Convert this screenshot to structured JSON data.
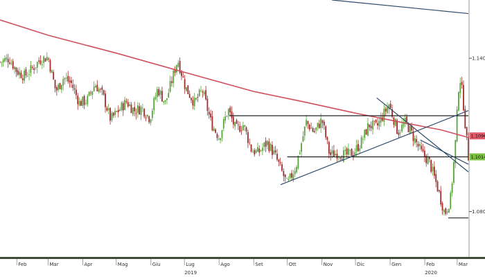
{
  "chart_data": {
    "type": "candlestick",
    "title": "",
    "xlabel": "",
    "ylabel": "",
    "x_ticks": [
      "Feb",
      "Mar",
      "Apr",
      "Mag",
      "Giu",
      "Lug",
      "Ago",
      "Set",
      "Ott",
      "Nov",
      "Dic",
      "Gen",
      "Feb",
      "Mar"
    ],
    "x_tick_dates": [
      "2019-02-01",
      "2019-03-01",
      "2019-04-01",
      "2019-05-01",
      "2019-06-01",
      "2019-07-01",
      "2019-08-01",
      "2019-09-01",
      "2019-10-01",
      "2019-11-01",
      "2019-12-01",
      "2020-01-01",
      "2020-02-01",
      "2020-03-01"
    ],
    "x_range": [
      "2019-01-17",
      "2020-03-11"
    ],
    "years": [
      {
        "label": "2019",
        "date": "2019-07-01"
      },
      {
        "label": "2020",
        "date": "2020-02-01"
      }
    ],
    "y_ticks": [
      1.08,
      1.14
    ],
    "y_tick_labels": [
      "1.0800",
      "1.1400"
    ],
    "y_range": [
      1.0625,
      1.1628
    ],
    "y_axis_side": "right",
    "grid": false,
    "legend": "none",
    "price_tags": [
      {
        "label": "1.1096",
        "value": 1.1096,
        "color": "#e05a6a"
      },
      {
        "label": "1.1014",
        "value": 1.1014,
        "color": "#7bc043"
      }
    ],
    "series": [
      {
        "type": "candlestick",
        "up_color": "#56a33a",
        "down_color": "#a12a2a",
        "close_points": [
          [
            "2019-01-17",
            1.1385
          ],
          [
            "2019-01-25",
            1.14
          ],
          [
            "2019-02-01",
            1.135
          ],
          [
            "2019-02-08",
            1.133
          ],
          [
            "2019-02-15",
            1.136
          ],
          [
            "2019-02-22",
            1.1395
          ],
          [
            "2019-03-01",
            1.1405
          ],
          [
            "2019-03-08",
            1.127
          ],
          [
            "2019-03-15",
            1.1325
          ],
          [
            "2019-03-22",
            1.13
          ],
          [
            "2019-03-29",
            1.1225
          ],
          [
            "2019-04-05",
            1.1235
          ],
          [
            "2019-04-12",
            1.13
          ],
          [
            "2019-04-19",
            1.1255
          ],
          [
            "2019-04-26",
            1.116
          ],
          [
            "2019-05-03",
            1.1195
          ],
          [
            "2019-05-10",
            1.123
          ],
          [
            "2019-05-17",
            1.1195
          ],
          [
            "2019-05-24",
            1.1205
          ],
          [
            "2019-05-31",
            1.1165
          ],
          [
            "2019-06-07",
            1.128
          ],
          [
            "2019-06-14",
            1.1225
          ],
          [
            "2019-06-25",
            1.1395
          ],
          [
            "2019-07-02",
            1.1285
          ],
          [
            "2019-07-10",
            1.1225
          ],
          [
            "2019-07-17",
            1.1275
          ],
          [
            "2019-07-25",
            1.1145
          ],
          [
            "2019-08-01",
            1.109
          ],
          [
            "2019-08-09",
            1.12
          ],
          [
            "2019-08-16",
            1.112
          ],
          [
            "2019-08-23",
            1.114
          ],
          [
            "2019-08-30",
            1.104
          ],
          [
            "2019-09-05",
            1.103
          ],
          [
            "2019-09-13",
            1.107
          ],
          [
            "2019-09-20",
            1.102
          ],
          [
            "2019-10-01",
            1.0905
          ],
          [
            "2019-10-09",
            1.098
          ],
          [
            "2019-10-18",
            1.115
          ],
          [
            "2019-10-25",
            1.111
          ],
          [
            "2019-11-01",
            1.116
          ],
          [
            "2019-11-08",
            1.102
          ],
          [
            "2019-11-15",
            1.103
          ],
          [
            "2019-11-22",
            1.102
          ],
          [
            "2019-11-29",
            1.103
          ],
          [
            "2019-12-06",
            1.107
          ],
          [
            "2019-12-13",
            1.114
          ],
          [
            "2019-12-20",
            1.113
          ],
          [
            "2019-12-31",
            1.122
          ],
          [
            "2020-01-08",
            1.111
          ],
          [
            "2020-01-15",
            1.115
          ],
          [
            "2020-01-22",
            1.109
          ],
          [
            "2020-01-29",
            1.103
          ],
          [
            "2020-02-05",
            1.0995
          ],
          [
            "2020-02-12",
            1.09
          ],
          [
            "2020-02-19",
            1.079
          ],
          [
            "2020-02-24",
            1.085
          ],
          [
            "2020-02-28",
            1.104
          ],
          [
            "2020-03-03",
            1.134
          ],
          [
            "2020-03-06",
            1.125
          ],
          [
            "2020-03-09",
            1.11
          ],
          [
            "2020-03-11",
            1.1014
          ]
        ]
      },
      {
        "type": "line",
        "color": "#d0505e",
        "points": [
          [
            "2019-01-17",
            1.155
          ],
          [
            "2019-03-01",
            1.149
          ],
          [
            "2019-05-01",
            1.142
          ],
          [
            "2019-07-01",
            1.1345
          ],
          [
            "2019-09-01",
            1.127
          ],
          [
            "2019-10-15",
            1.123
          ],
          [
            "2019-12-01",
            1.1185
          ],
          [
            "2020-01-10",
            1.115
          ],
          [
            "2020-02-15",
            1.112
          ],
          [
            "2020-03-11",
            1.109
          ]
        ]
      }
    ],
    "trendlines": [
      {
        "color": "#222222",
        "points": [
          [
            "2019-08-10",
            1.1175
          ],
          [
            "2020-03-11",
            1.1175
          ]
        ]
      },
      {
        "color": "#222222",
        "points": [
          [
            "2019-10-01",
            1.1014
          ],
          [
            "2020-03-11",
            1.1014
          ]
        ]
      },
      {
        "color": "#2e4a6b",
        "points": [
          [
            "2019-09-25",
            1.0905
          ],
          [
            "2020-03-11",
            1.1195
          ]
        ]
      },
      {
        "color": "#2e4a6b",
        "points": [
          [
            "2019-12-20",
            1.1245
          ],
          [
            "2020-03-11",
            1.0955
          ]
        ]
      },
      {
        "color": "#2e4a6b",
        "points": [
          [
            "2020-01-28",
            1.108
          ],
          [
            "2020-03-11",
            1.0985
          ]
        ]
      },
      {
        "color": "#2e4a6b",
        "points": [
          [
            "2019-11-10",
            1.1628
          ],
          [
            "2020-03-11",
            1.1575
          ]
        ]
      },
      {
        "color": "#222222",
        "points": [
          [
            "2020-02-22",
            1.0775
          ],
          [
            "2020-03-11",
            1.0775
          ]
        ]
      }
    ]
  }
}
